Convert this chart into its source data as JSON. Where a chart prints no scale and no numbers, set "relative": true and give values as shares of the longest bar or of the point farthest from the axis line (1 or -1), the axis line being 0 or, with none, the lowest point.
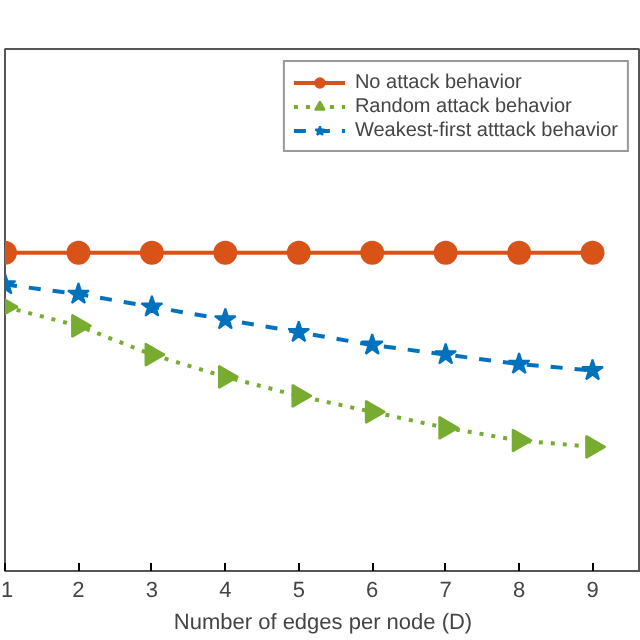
{
  "chart_data": {
    "type": "line",
    "relative": true,
    "xlabel": "Number of edges per node (D)",
    "x": [
      1,
      2,
      3,
      4,
      5,
      6,
      7,
      8,
      9
    ],
    "xlim": [
      1,
      9.66
    ],
    "xticks": [
      1,
      2,
      3,
      4,
      5,
      6,
      7,
      8,
      9
    ],
    "grid": false,
    "legend": "top right",
    "series": [
      {
        "name": "No attack behavior",
        "color": "#d95319",
        "marker": "circle",
        "line_style": "solid",
        "values": [
          1,
          1,
          1,
          1,
          1,
          1,
          1,
          1,
          1
        ]
      },
      {
        "name": "Random attack behavior",
        "color": "#77ac30",
        "marker": "triangle",
        "line_style": "dotted",
        "values": [
          0.83,
          0.77,
          0.68,
          0.61,
          0.55,
          0.5,
          0.45,
          0.41,
          0.39
        ]
      },
      {
        "name": "Weakest-first atttack behavior",
        "color": "#0072bd",
        "marker": "star",
        "line_style": "dashed",
        "values": [
          0.9,
          0.87,
          0.83,
          0.79,
          0.75,
          0.71,
          0.68,
          0.65,
          0.63
        ]
      }
    ]
  }
}
